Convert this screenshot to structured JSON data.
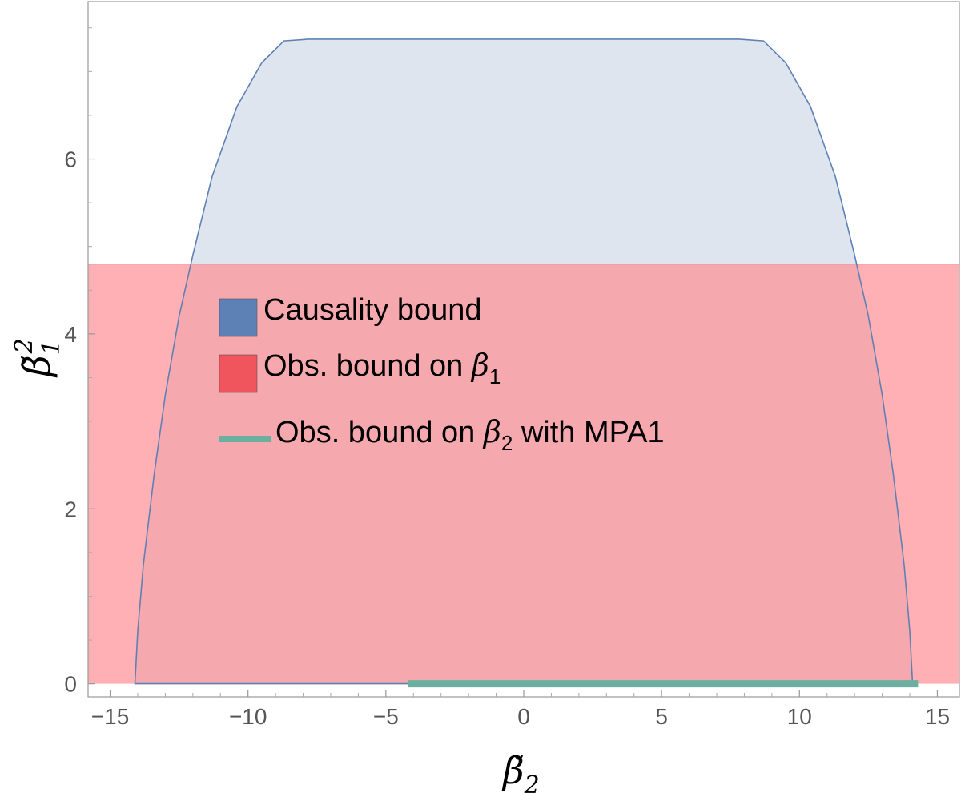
{
  "chart_data": {
    "type": "area",
    "xlabel": {
      "base": "β̃",
      "sub": "2"
    },
    "ylabel": {
      "base": "β̃",
      "sub": "1",
      "sup": "2"
    },
    "xlim": [
      -15.8,
      15.8
    ],
    "ylim": [
      -0.15,
      7.8
    ],
    "x_ticks": [
      -15,
      -10,
      -5,
      0,
      5,
      10,
      15
    ],
    "x_tick_labels": [
      "−15",
      "−10",
      "−5",
      "0",
      "5",
      "10",
      "15"
    ],
    "y_ticks": [
      0,
      2,
      4,
      6
    ],
    "y_tick_labels": [
      "0",
      "2",
      "4",
      "6"
    ],
    "series": [
      {
        "name": "Causality bound",
        "kind": "region",
        "color": "#5e81b5",
        "fill": "#dfe5ef",
        "boundary": [
          [
            -14.1,
            0
          ],
          [
            -14.0,
            0.6
          ],
          [
            -13.8,
            1.35
          ],
          [
            -13.4,
            2.4
          ],
          [
            -13.0,
            3.3
          ],
          [
            -12.5,
            4.2
          ],
          [
            -12.0,
            4.9
          ],
          [
            -11.3,
            5.8
          ],
          [
            -10.4,
            6.6
          ],
          [
            -9.5,
            7.1
          ],
          [
            -8.7,
            7.35
          ],
          [
            -7.8,
            7.37
          ],
          [
            7.8,
            7.37
          ],
          [
            8.7,
            7.35
          ],
          [
            9.5,
            7.1
          ],
          [
            10.4,
            6.6
          ],
          [
            11.3,
            5.8
          ],
          [
            12.0,
            4.9
          ],
          [
            12.5,
            4.2
          ],
          [
            13.0,
            3.3
          ],
          [
            13.4,
            2.4
          ],
          [
            13.8,
            1.35
          ],
          [
            14.0,
            0.6
          ],
          [
            14.1,
            0
          ]
        ]
      },
      {
        "name": "Obs. bound on β₁",
        "kind": "band",
        "color": "#f0545c",
        "fill": "#ff8f94",
        "y_range": [
          0,
          4.8
        ]
      },
      {
        "name": "Obs. bound on β₂ with MPA1",
        "kind": "segment",
        "color": "#6aafa0",
        "x_range": [
          -4.2,
          14.3
        ],
        "y": 0
      }
    ],
    "legend": {
      "placement": "upper-left-inside",
      "entries": [
        {
          "text": "Causality bound",
          "math": "",
          "sub": "",
          "rest": "",
          "swatch": "box",
          "color": "#5e81b5"
        },
        {
          "text": "Obs. bound on ",
          "math": "β",
          "sub": "1",
          "rest": "",
          "swatch": "box",
          "color": "#f0545c"
        },
        {
          "text": "Obs. bound on ",
          "math": "β",
          "sub": "2",
          "rest": " with MPA1",
          "swatch": "line",
          "color": "#6aafa0"
        }
      ]
    }
  }
}
